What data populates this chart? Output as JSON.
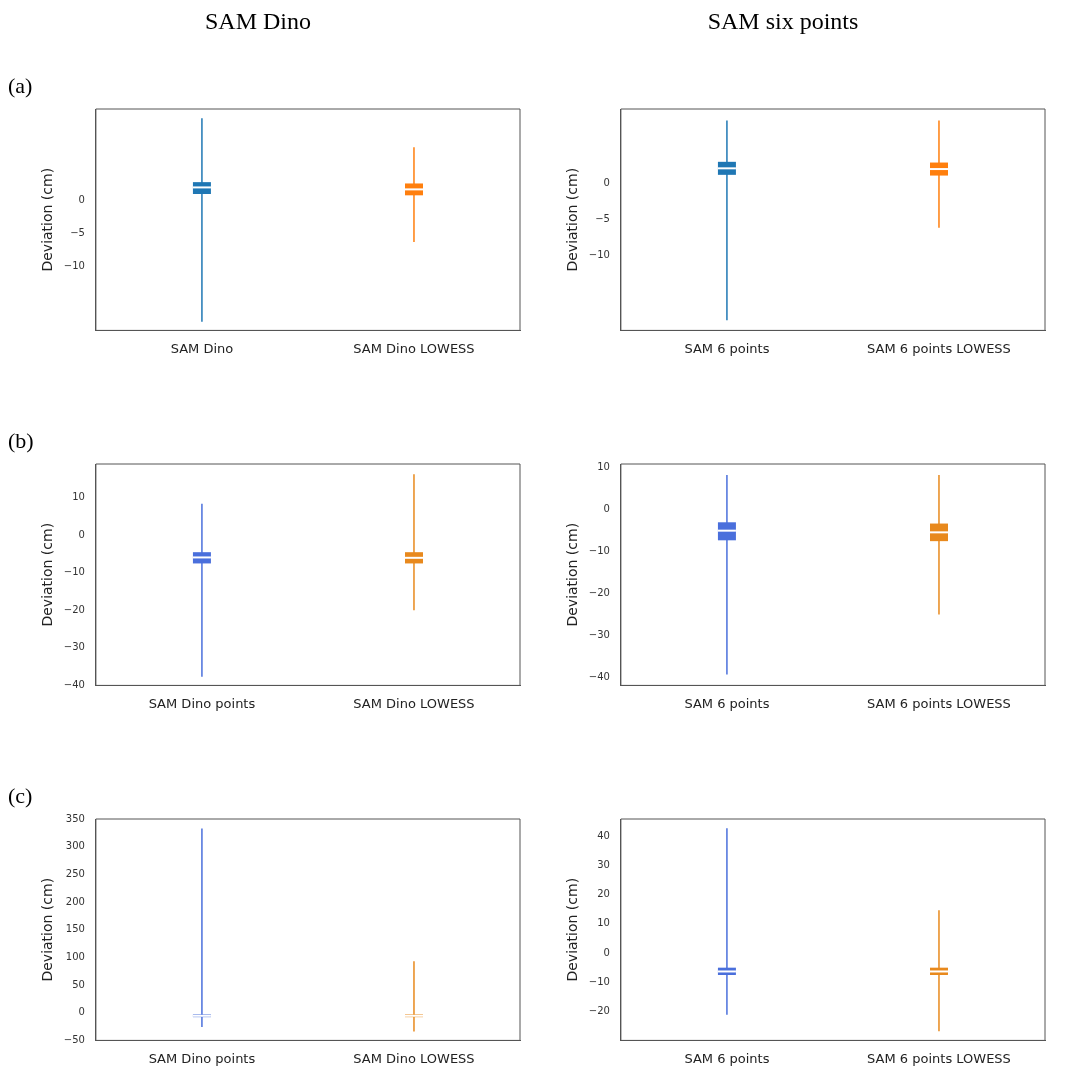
{
  "chart_data": [
    {
      "type": "box",
      "title": "SAM Dino",
      "annotations": [
        "(a)"
      ],
      "categories": [
        "SAM Dino",
        "SAM Dino LOWESS"
      ],
      "colors": [
        "#1f77b4",
        "#ff7f0e"
      ],
      "ylabel": "Deviation (cm)",
      "ylim": [
        -19.7,
        13.9
      ],
      "yticks": [
        0,
        {
          "value": -5,
          "label": "−5"
        },
        {
          "value": -10,
          "label": "−10"
        }
      ],
      "boxes": [
        {
          "low": -18.4,
          "q1": 1,
          "median": 2,
          "q3": 2.8,
          "high": 12.5
        },
        {
          "low": -6.3,
          "q1": 0.8,
          "median": 1.7,
          "q3": 2.6,
          "high": 8.1
        }
      ]
    },
    {
      "type": "box",
      "title": "SAM six points",
      "categories": [
        "SAM 6 points",
        "SAM 6 points LOWESS"
      ],
      "colors": [
        "#1f77b4",
        "#ff7f0e"
      ],
      "ylabel": "Deviation (cm)",
      "ylim": [
        -20.3,
        10.3
      ],
      "yticks": [
        0,
        {
          "value": -5,
          "label": "−5"
        },
        {
          "value": -10,
          "label": "−10"
        }
      ],
      "boxes": [
        {
          "low": -18.9,
          "q1": 1.2,
          "median": 2.1,
          "q3": 3,
          "high": 8.7
        },
        {
          "low": -6.1,
          "q1": 1.1,
          "median": 2,
          "q3": 2.9,
          "high": 8.7
        }
      ]
    },
    {
      "type": "box",
      "annotations": [
        "(b)"
      ],
      "categories": [
        "SAM Dino points",
        "SAM Dino LOWESS"
      ],
      "colors": [
        "#4a6fdc",
        "#e8891d"
      ],
      "ylabel": "Deviation (cm)",
      "ylim": [
        -40,
        19
      ],
      "yticks": [
        {
          "value": -40,
          "label": "−40"
        },
        {
          "value": -30,
          "label": "−30"
        },
        {
          "value": -20,
          "label": "−20"
        },
        {
          "value": -10,
          "label": "−10"
        },
        0,
        10
      ],
      "boxes": [
        {
          "low": -37.7,
          "q1": -7.5,
          "median": -5.9,
          "q3": -4.5,
          "high": 8.4
        },
        {
          "low": -20,
          "q1": -7.5,
          "median": -6,
          "q3": -4.5,
          "high": 16.3
        }
      ]
    },
    {
      "type": "box",
      "categories": [
        "SAM 6 points",
        "SAM 6 points LOWESS"
      ],
      "colors": [
        "#4a6fdc",
        "#e8891d"
      ],
      "ylabel": "Deviation (cm)",
      "ylim": [
        -41.9,
        10.9
      ],
      "yticks": [
        {
          "value": -40,
          "label": "−40"
        },
        {
          "value": -30,
          "label": "−30"
        },
        {
          "value": -20,
          "label": "−20"
        },
        {
          "value": -10,
          "label": "−10"
        },
        0,
        10
      ],
      "boxes": [
        {
          "low": -39.3,
          "q1": -7.3,
          "median": -5,
          "q3": -3,
          "high": 8.3
        },
        {
          "low": -25,
          "q1": -7.5,
          "median": -5.4,
          "q3": -3.3,
          "high": 8.3
        }
      ]
    },
    {
      "type": "box",
      "annotations": [
        "(c)"
      ],
      "categories": [
        "SAM Dino points",
        "SAM Dino LOWESS"
      ],
      "colors": [
        "#4a6fdc",
        "#e8891d"
      ],
      "ylabel": "Deviation (cm)",
      "ylim": [
        -50,
        350
      ],
      "yticks": [
        {
          "value": -50,
          "label": "−50"
        },
        0,
        50,
        100,
        150,
        200,
        250,
        300,
        350
      ],
      "boxes": [
        {
          "low": -26,
          "q1": -8,
          "median": -5.5,
          "q3": -3,
          "high": 333
        },
        {
          "low": -34,
          "q1": -8,
          "median": -5.5,
          "q3": -3,
          "high": 93
        }
      ]
    },
    {
      "type": "box",
      "categories": [
        "SAM 6 points",
        "SAM 6 points LOWESS"
      ],
      "colors": [
        "#4a6fdc",
        "#e8891d"
      ],
      "ylabel": "Deviation (cm)",
      "ylim": [
        -29.9,
        45.9
      ],
      "yticks": [
        {
          "value": -20,
          "label": "−20"
        },
        {
          "value": -10,
          "label": "−10"
        },
        0,
        10,
        20,
        30,
        40
      ],
      "boxes": [
        {
          "low": -21.1,
          "q1": -7.5,
          "median": -6.3,
          "q3": -5,
          "high": 42.7
        },
        {
          "low": -26.8,
          "q1": -7.5,
          "median": -6.3,
          "q3": -5,
          "high": 14.7
        }
      ]
    }
  ]
}
